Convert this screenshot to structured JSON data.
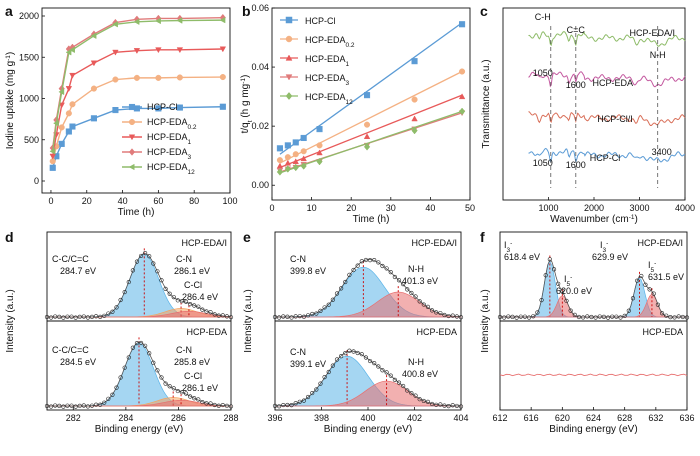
{
  "chart_data": [
    {
      "panel": "a",
      "type": "line",
      "xlabel": "Time (h)",
      "ylabel": "Iodine uptake (mg g-1)",
      "xlim": [
        -5,
        100
      ],
      "ylim": [
        0,
        2000
      ],
      "xticks": [
        0,
        20,
        40,
        60,
        80,
        100
      ],
      "yticks": [
        0,
        500,
        1000,
        1500,
        2000
      ],
      "legend_position": "bottom-right",
      "series": [
        {
          "name": "HCP-Cl",
          "color": "#5b9bd5",
          "marker": "square",
          "x": [
            1,
            3,
            6,
            10,
            12,
            24,
            36,
            48,
            60,
            72,
            96
          ],
          "y": [
            160,
            300,
            450,
            600,
            660,
            760,
            860,
            880,
            880,
            890,
            900
          ]
        },
        {
          "name": "HCP-EDA0.2",
          "color": "#f4b183",
          "marker": "circle",
          "x": [
            1,
            3,
            6,
            10,
            12,
            24,
            36,
            48,
            60,
            72,
            96
          ],
          "y": [
            240,
            420,
            650,
            820,
            930,
            1120,
            1230,
            1250,
            1250,
            1255,
            1260
          ]
        },
        {
          "name": "HCP-EDA1",
          "color": "#e85a5a",
          "marker": "triangle-down",
          "x": [
            1,
            3,
            6,
            10,
            12,
            24,
            36,
            48,
            60,
            72,
            96
          ],
          "y": [
            300,
            560,
            920,
            1120,
            1280,
            1430,
            1560,
            1580,
            1590,
            1590,
            1600
          ]
        },
        {
          "name": "HCP-EDA3",
          "color": "#e07b7b",
          "marker": "diamond",
          "x": [
            1,
            3,
            6,
            10,
            12,
            24,
            36,
            48,
            60,
            72,
            96
          ],
          "y": [
            400,
            740,
            1120,
            1600,
            1620,
            1780,
            1920,
            1960,
            1970,
            1970,
            1980
          ]
        },
        {
          "name": "HCP-EDA12",
          "color": "#8fbc6a",
          "marker": "triangle-left",
          "x": [
            1,
            3,
            6,
            10,
            12,
            24,
            36,
            48,
            60,
            72,
            96
          ],
          "y": [
            360,
            700,
            1080,
            1560,
            1590,
            1760,
            1900,
            1930,
            1940,
            1945,
            1950
          ]
        }
      ]
    },
    {
      "panel": "b",
      "type": "scatter",
      "xlabel": "Time (h)",
      "ylabel": "t/qt (h g mg-1)",
      "xlim": [
        0,
        50
      ],
      "ylim": [
        -0.005,
        0.06
      ],
      "xticks": [
        0,
        10,
        20,
        30,
        40,
        50
      ],
      "yticks": [
        0.0,
        0.02,
        0.04,
        0.06
      ],
      "legend_position": "top-left",
      "series": [
        {
          "name": "HCP-Cl",
          "color": "#5b9bd5",
          "marker": "square",
          "x": [
            2,
            4,
            6,
            8,
            12,
            24,
            36,
            48
          ],
          "y": [
            0.0125,
            0.0135,
            0.0145,
            0.016,
            0.019,
            0.0305,
            0.042,
            0.0545
          ],
          "fit": [
            [
              2,
              0.0105
            ],
            [
              48,
              0.055
            ]
          ]
        },
        {
          "name": "HCP-EDA0.2",
          "color": "#f4b183",
          "marker": "circle",
          "x": [
            2,
            4,
            6,
            8,
            12,
            24,
            36,
            48
          ],
          "y": [
            0.0085,
            0.0095,
            0.0105,
            0.0115,
            0.0135,
            0.0205,
            0.029,
            0.0385
          ],
          "fit": [
            [
              2,
              0.0075
            ],
            [
              48,
              0.0385
            ]
          ]
        },
        {
          "name": "HCP-EDA1",
          "color": "#e85a5a",
          "marker": "triangle-up",
          "x": [
            2,
            4,
            6,
            8,
            12,
            24,
            36,
            48
          ],
          "y": [
            0.0065,
            0.0075,
            0.008,
            0.009,
            0.011,
            0.0165,
            0.0225,
            0.03
          ],
          "fit": [
            [
              2,
              0.006
            ],
            [
              48,
              0.0305
            ]
          ]
        },
        {
          "name": "HCP-EDA3",
          "color": "#e07b7b",
          "marker": "triangle-down",
          "x": [
            2,
            4,
            6,
            8,
            12,
            24,
            36,
            48
          ],
          "y": [
            0.005,
            0.0055,
            0.006,
            0.007,
            0.008,
            0.0135,
            0.019,
            0.0245
          ],
          "fit": [
            [
              2,
              0.0045
            ],
            [
              48,
              0.0245
            ]
          ]
        },
        {
          "name": "HCP-EDA12",
          "color": "#8fbc6a",
          "marker": "diamond",
          "x": [
            2,
            4,
            6,
            8,
            12,
            24,
            36,
            48
          ],
          "y": [
            0.0045,
            0.0055,
            0.006,
            0.0065,
            0.008,
            0.013,
            0.0185,
            0.025
          ],
          "fit": [
            [
              2,
              0.0042
            ],
            [
              48,
              0.025
            ]
          ]
        }
      ]
    },
    {
      "panel": "c",
      "type": "line",
      "xlabel": "Wavenumber (cm-1)",
      "ylabel": "Transmittance (a.u.)",
      "xlim": [
        0,
        4000
      ],
      "xticks": [
        1000,
        2000,
        3000,
        4000
      ],
      "y_ticks_shown": false,
      "series": [
        {
          "name": "HCP-EDA/I",
          "color": "#8fbc6a"
        },
        {
          "name": "HCP-EDA",
          "color": "#c45aa0"
        },
        {
          "name": "HCP-Cl/I",
          "color": "#d9705a"
        },
        {
          "name": "HCP-Cl",
          "color": "#5b9bd5"
        }
      ],
      "annotations": [
        "C-H",
        "C=C",
        "N-H",
        "1050",
        "1600",
        "1050",
        "1600",
        "3400"
      ]
    },
    {
      "panel": "d",
      "type": "line",
      "xlabel": "Binding energy (eV)",
      "ylabel": "Intensity (a.u.)",
      "xlim": [
        281,
        288
      ],
      "xticks": [
        282,
        284,
        286,
        288
      ],
      "subplots": [
        {
          "title": "HCP-EDA/I",
          "peaks": [
            {
              "label": "C-C/C=C",
              "energy": "284.7 eV",
              "center": 284.7,
              "color": "#5bb4e8"
            },
            {
              "label": "C-N",
              "energy": "286.1 eV",
              "center": 286.1,
              "color": "#f4a460"
            },
            {
              "label": "C-Cl",
              "energy": "286.4 eV",
              "center": 286.4,
              "color": "#e87070"
            }
          ]
        },
        {
          "title": "HCP-EDA",
          "peaks": [
            {
              "label": "C-C/C=C",
              "energy": "284.5 eV",
              "center": 284.5,
              "color": "#5bb4e8"
            },
            {
              "label": "C-N",
              "energy": "285.8 eV",
              "center": 285.8,
              "color": "#f4a460"
            },
            {
              "label": "C-Cl",
              "energy": "286.1 eV",
              "center": 286.1,
              "color": "#e87070"
            }
          ]
        }
      ]
    },
    {
      "panel": "e",
      "type": "line",
      "xlabel": "Binding energy (eV)",
      "ylabel": "Intensity (a.u.)",
      "xlim": [
        396,
        404
      ],
      "xticks": [
        396,
        398,
        400,
        402,
        404
      ],
      "subplots": [
        {
          "title": "HCP-EDA/I",
          "peaks": [
            {
              "label": "C-N",
              "energy": "399.8 eV",
              "center": 399.8,
              "color": "#5bb4e8"
            },
            {
              "label": "N-H",
              "energy": "401.3 eV",
              "center": 401.3,
              "color": "#e87070"
            }
          ]
        },
        {
          "title": "HCP-EDA",
          "peaks": [
            {
              "label": "C-N",
              "energy": "399.1 eV",
              "center": 399.1,
              "color": "#5bb4e8"
            },
            {
              "label": "N-H",
              "energy": "400.8 eV",
              "center": 400.8,
              "color": "#e87070"
            }
          ]
        }
      ]
    },
    {
      "panel": "f",
      "type": "line",
      "xlabel": "Binding energy (eV)",
      "ylabel": "Intensity (a.u.)",
      "xlim": [
        612,
        636
      ],
      "xticks": [
        612,
        616,
        620,
        624,
        628,
        632,
        636
      ],
      "subplots": [
        {
          "title": "HCP-EDA/I",
          "peaks": [
            {
              "label": "I3-",
              "energy": "618.4 eV",
              "center": 618.4,
              "color": "#5bb4e8"
            },
            {
              "label": "I5-",
              "energy": "620.0 eV",
              "center": 620.0,
              "color": "#e87070"
            },
            {
              "label": "I3-",
              "energy": "629.9 eV",
              "center": 629.9,
              "color": "#5bb4e8"
            },
            {
              "label": "I5-",
              "energy": "631.5 eV",
              "center": 631.5,
              "color": "#e87070"
            }
          ]
        },
        {
          "title": "HCP-EDA",
          "peaks": []
        }
      ]
    }
  ]
}
